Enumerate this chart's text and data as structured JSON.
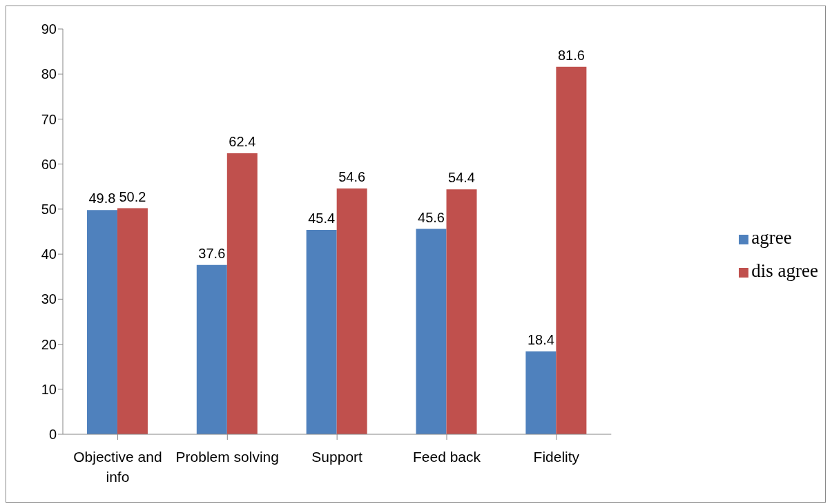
{
  "chart_data": {
    "type": "bar",
    "categories": [
      "Objective and info",
      "Problem solving",
      "Support",
      "Feed back",
      "Fidelity"
    ],
    "series": [
      {
        "name": "agree",
        "color": "#4f81bd",
        "values": [
          49.8,
          37.6,
          45.4,
          45.6,
          18.4
        ]
      },
      {
        "name": "dis agree",
        "color": "#c0504d",
        "values": [
          50.2,
          62.4,
          54.6,
          54.4,
          81.6
        ]
      }
    ],
    "ylim": [
      0,
      90
    ],
    "yticks": [
      0,
      10,
      20,
      30,
      40,
      50,
      60,
      70,
      80,
      90
    ],
    "data_labels": true,
    "legend": "right"
  }
}
